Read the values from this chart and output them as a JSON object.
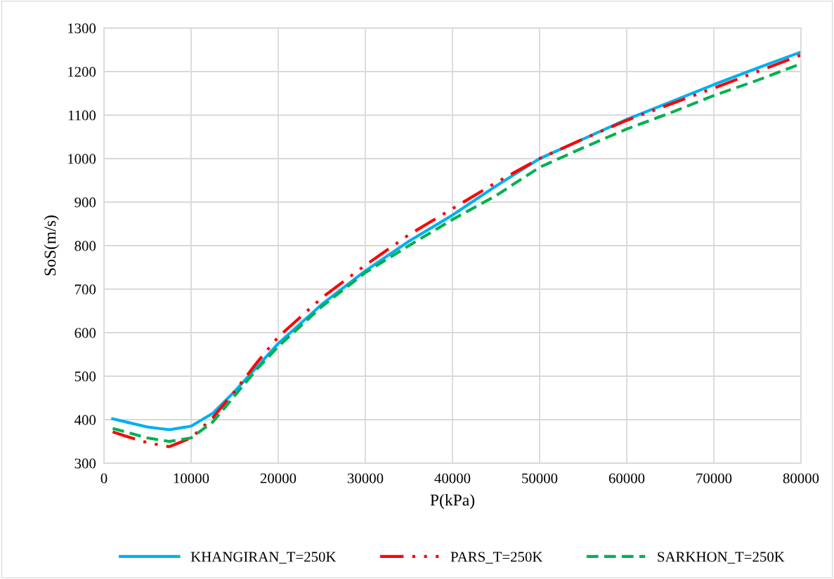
{
  "chart_data": {
    "type": "line",
    "xlabel": "P(kPa)",
    "ylabel": "SoS(m/s)",
    "x": [
      1000,
      2500,
      5000,
      7500,
      10000,
      12500,
      15000,
      17500,
      20000,
      25000,
      30000,
      35000,
      40000,
      45000,
      50000,
      55000,
      60000,
      65000,
      70000,
      75000,
      80000
    ],
    "series": [
      {
        "name": "KHANGIRAN_T=250K",
        "color": "#00b0f0",
        "line_style": "solid",
        "values": [
          402,
          395,
          383,
          377,
          385,
          415,
          465,
          520,
          575,
          665,
          742,
          810,
          870,
          937,
          1000,
          1045,
          1090,
          1130,
          1170,
          1208,
          1245
        ]
      },
      {
        "name": "PARS_T=250K",
        "color": "#ff0000",
        "line_style": "dashdotdot",
        "values": [
          372,
          362,
          347,
          338,
          358,
          405,
          465,
          530,
          590,
          680,
          755,
          825,
          885,
          945,
          1000,
          1045,
          1088,
          1125,
          1162,
          1200,
          1238
        ]
      },
      {
        "name": "SARKHON_T=250K",
        "color": "#00b050",
        "line_style": "dashed",
        "values": [
          380,
          372,
          358,
          350,
          358,
          395,
          455,
          515,
          568,
          660,
          738,
          800,
          860,
          915,
          980,
          1025,
          1068,
          1105,
          1145,
          1180,
          1218
        ]
      }
    ],
    "xlim": [
      0,
      80000
    ],
    "xticks": [
      0,
      10000,
      20000,
      30000,
      40000,
      50000,
      60000,
      70000,
      80000
    ],
    "ylim": [
      300,
      1300
    ],
    "yticks": [
      300,
      400,
      500,
      600,
      700,
      800,
      900,
      1000,
      1100,
      1200,
      1300
    ],
    "grid": true,
    "legend": "bottom",
    "marker": "none"
  }
}
